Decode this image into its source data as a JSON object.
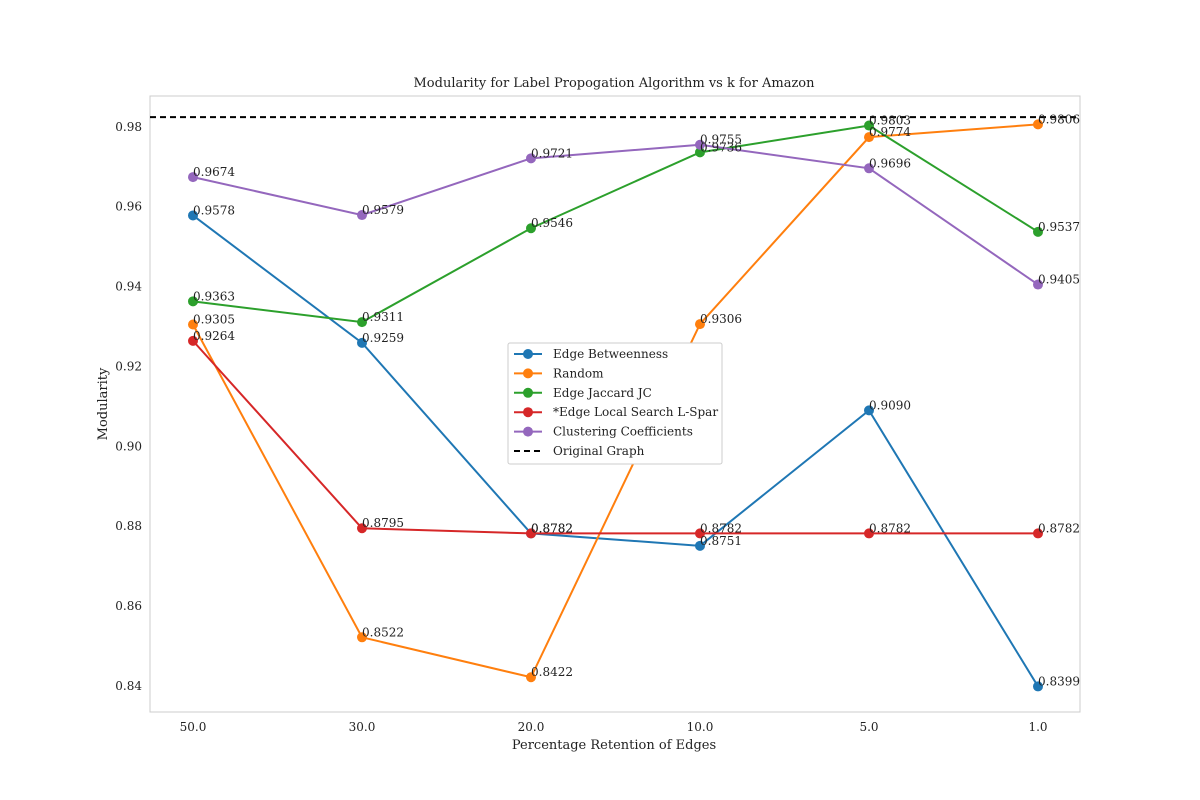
{
  "chart_data": {
    "type": "line",
    "title": "Modularity for Label Propogation Algorithm vs k for Amazon",
    "xlabel": "Percentage Retention of Edges",
    "ylabel": "Modularity",
    "categories": [
      "50.0",
      "30.0",
      "20.0",
      "10.0",
      "5.0",
      "1.0"
    ],
    "ylim": [
      0.8335,
      0.9877
    ],
    "yticks": [
      "0.84",
      "0.86",
      "0.88",
      "0.90",
      "0.92",
      "0.94",
      "0.96",
      "0.98"
    ],
    "grid": false,
    "legend_placement": "center",
    "series": [
      {
        "name": "Edge Betweenness",
        "color": "#1f77b4",
        "values": [
          0.9578,
          0.9259,
          0.8782,
          0.8751,
          0.909,
          0.8399
        ],
        "labels": [
          "0.9578",
          "0.9259",
          "0.8782",
          "0.8751",
          "0.9090",
          "0.8399"
        ]
      },
      {
        "name": "Random",
        "color": "#ff7f0e",
        "values": [
          0.9305,
          0.8522,
          0.8422,
          0.9306,
          0.9774,
          0.9806
        ],
        "labels": [
          "0.9305",
          "0.8522",
          "0.8422",
          "0.9306",
          "0.9774",
          "0.9806"
        ]
      },
      {
        "name": "Edge Jaccard JC",
        "color": "#2ca02c",
        "values": [
          0.9363,
          0.9311,
          0.9546,
          0.9736,
          0.9803,
          0.9537
        ],
        "labels": [
          "0.9363",
          "0.9311",
          "0.9546",
          "0.9736",
          "0.9803",
          "0.9537"
        ]
      },
      {
        "name": "*Edge Local Search L-Spar",
        "color": "#d62728",
        "values": [
          0.9264,
          0.8795,
          0.8782,
          0.8782,
          0.8782,
          0.8782
        ],
        "labels": [
          "0.9264",
          "0.8795",
          "0.8782",
          "0.8782",
          "0.8782",
          "0.8782"
        ]
      },
      {
        "name": "Clustering Coefficients",
        "color": "#9467bd",
        "values": [
          0.9674,
          0.9579,
          0.9721,
          0.9755,
          0.9696,
          0.9405
        ],
        "labels": [
          "0.9674",
          "0.9579",
          "0.9721",
          "0.9755",
          "0.9696",
          "0.9405"
        ]
      }
    ],
    "reference_line": {
      "name": "Original Graph",
      "value": 0.9824,
      "color": "#000000",
      "style": "dashed"
    }
  }
}
